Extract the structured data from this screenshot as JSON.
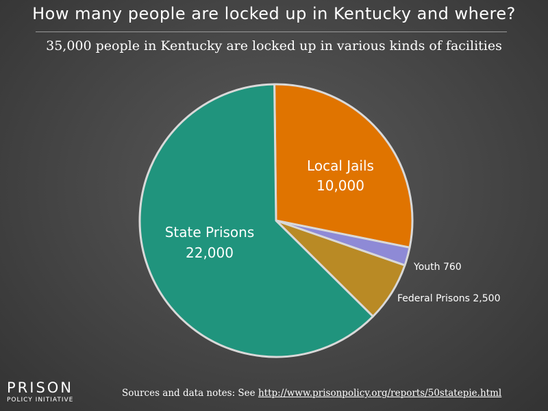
{
  "header": {
    "title": "How many people are locked up in Kentucky and where?",
    "subtitle": "35,000 people in Kentucky are locked up in various kinds of facilities"
  },
  "chart_data": {
    "type": "pie",
    "slices": [
      {
        "name": "Local Jails",
        "value": 10000,
        "label": "10,000",
        "color": "#e07400",
        "label_position": "inside"
      },
      {
        "name": "Youth",
        "value": 760,
        "label": "760",
        "color": "#8e8ad6",
        "label_position": "outside"
      },
      {
        "name": "Federal Prisons",
        "value": 2500,
        "label": "2,500",
        "color": "#b98a25",
        "label_position": "outside"
      },
      {
        "name": "State Prisons",
        "value": 22000,
        "label": "22,000",
        "color": "#20947d",
        "label_position": "inside"
      }
    ]
  },
  "logo": {
    "top": "PRISON",
    "bottom": "POLICY INITIATIVE"
  },
  "footer": {
    "sources_text": "Sources and data notes: See ",
    "sources_link": "http://www.prisonpolicy.org/reports/50statepie.html"
  }
}
